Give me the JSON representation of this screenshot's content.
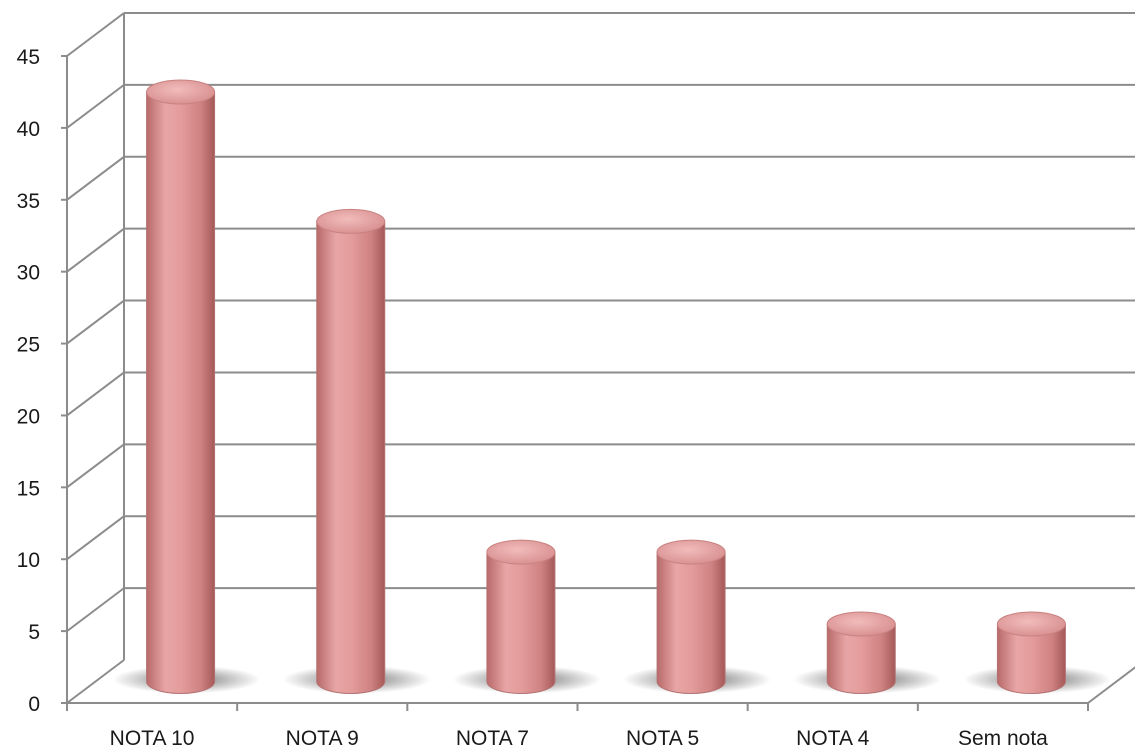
{
  "chart_data": {
    "type": "bar",
    "title": "",
    "xlabel": "",
    "ylabel": "",
    "categories": [
      "NOTA 10",
      "NOTA 9",
      "NOTA 7",
      "NOTA 5",
      "NOTA 4",
      "Sem nota"
    ],
    "values": [
      41,
      32,
      9,
      9,
      4,
      4
    ],
    "ylim": [
      0,
      45
    ],
    "yticks": [
      "0",
      "5",
      "10",
      "15",
      "20",
      "25",
      "30",
      "35",
      "40",
      "45"
    ],
    "grid": true,
    "legend": "none",
    "style": "3d-cylinder",
    "bar_color": "#e29494",
    "grid_color": "#8c8c8c"
  }
}
